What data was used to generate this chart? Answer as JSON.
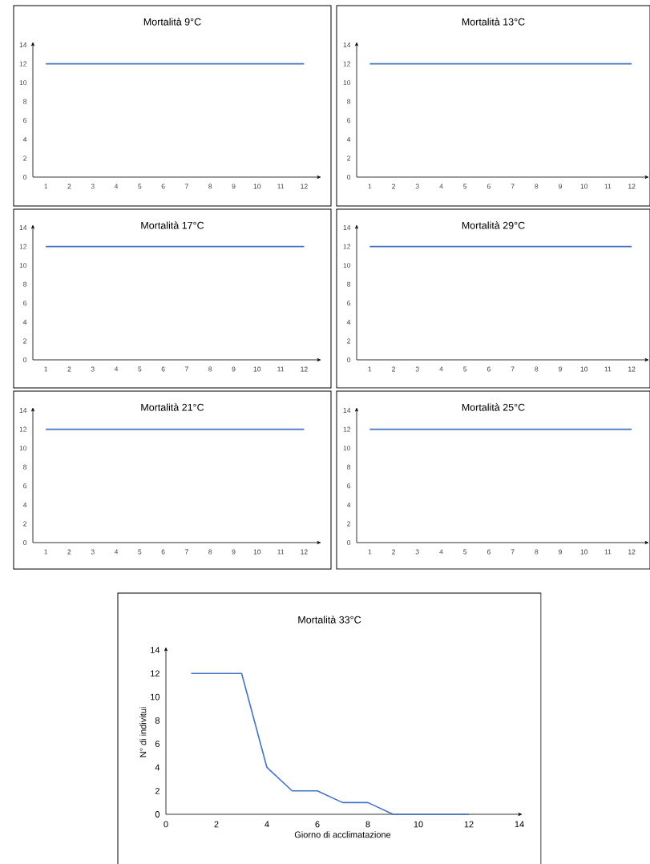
{
  "chart_data": [
    {
      "type": "line",
      "title": "Mortalità 9°C",
      "categories": [
        "1",
        "2",
        "3",
        "4",
        "5",
        "6",
        "7",
        "8",
        "9",
        "10",
        "11",
        "12"
      ],
      "series": [
        {
          "color": "#4472c4",
          "values": [
            12,
            12,
            12,
            12,
            12,
            12,
            12,
            12,
            12,
            12,
            12,
            12
          ]
        }
      ],
      "ylim": [
        0,
        14
      ],
      "yticks": [
        0,
        2,
        4,
        6,
        8,
        10,
        12,
        14
      ]
    },
    {
      "type": "line",
      "title": "Mortalità 13°C",
      "categories": [
        "1",
        "2",
        "3",
        "4",
        "5",
        "6",
        "7",
        "8",
        "9",
        "10",
        "11",
        "12"
      ],
      "series": [
        {
          "color": "#4472c4",
          "values": [
            12,
            12,
            12,
            12,
            12,
            12,
            12,
            12,
            12,
            12,
            12,
            12
          ]
        }
      ],
      "ylim": [
        0,
        14
      ],
      "yticks": [
        0,
        2,
        4,
        6,
        8,
        10,
        12,
        14
      ]
    },
    {
      "type": "line",
      "title": "Mortalità 17°C",
      "categories": [
        "1",
        "2",
        "3",
        "4",
        "5",
        "6",
        "7",
        "8",
        "9",
        "10",
        "11",
        "12"
      ],
      "series": [
        {
          "color": "#4472c4",
          "values": [
            12,
            12,
            12,
            12,
            12,
            12,
            12,
            12,
            12,
            12,
            12,
            12
          ]
        }
      ],
      "ylim": [
        0,
        14
      ],
      "yticks": [
        0,
        2,
        4,
        6,
        8,
        10,
        12,
        14
      ]
    },
    {
      "type": "line",
      "title": "Mortalità 29°C",
      "categories": [
        "1",
        "2",
        "3",
        "4",
        "5",
        "6",
        "7",
        "8",
        "9",
        "10",
        "11",
        "12"
      ],
      "series": [
        {
          "color": "#4472c4",
          "values": [
            12,
            12,
            12,
            12,
            12,
            12,
            12,
            12,
            12,
            12,
            12,
            12
          ]
        }
      ],
      "ylim": [
        0,
        14
      ],
      "yticks": [
        0,
        2,
        4,
        6,
        8,
        10,
        12,
        14
      ]
    },
    {
      "type": "line",
      "title": "Mortalità 21°C",
      "categories": [
        "1",
        "2",
        "3",
        "4",
        "5",
        "6",
        "7",
        "8",
        "9",
        "10",
        "11",
        "12"
      ],
      "series": [
        {
          "color": "#4472c4",
          "values": [
            12,
            12,
            12,
            12,
            12,
            12,
            12,
            12,
            12,
            12,
            12,
            12
          ]
        }
      ],
      "ylim": [
        0,
        14
      ],
      "yticks": [
        0,
        2,
        4,
        6,
        8,
        10,
        12,
        14
      ]
    },
    {
      "type": "line",
      "title": "Mortalità 25°C",
      "categories": [
        "1",
        "2",
        "3",
        "4",
        "5",
        "6",
        "7",
        "8",
        "9",
        "10",
        "11",
        "12"
      ],
      "series": [
        {
          "color": "#4472c4",
          "values": [
            12,
            12,
            12,
            12,
            12,
            12,
            12,
            12,
            12,
            12,
            12,
            12
          ]
        }
      ],
      "ylim": [
        0,
        14
      ],
      "yticks": [
        0,
        2,
        4,
        6,
        8,
        10,
        12,
        14
      ]
    },
    {
      "type": "line",
      "title": "Mortalità 33°C",
      "xlabel": "Giorno di acclimatazione",
      "ylabel": "N° di indivitui",
      "x": [
        1,
        2,
        3,
        4,
        5,
        6,
        7,
        8,
        9,
        10,
        11,
        12
      ],
      "series": [
        {
          "color": "#4472c4",
          "values": [
            12,
            12,
            12,
            4,
            2,
            2,
            1,
            1,
            0,
            0,
            0,
            0
          ]
        }
      ],
      "xlim": [
        0,
        14
      ],
      "xticks": [
        0,
        2,
        4,
        6,
        8,
        10,
        12,
        14
      ],
      "ylim": [
        0,
        14
      ],
      "yticks": [
        0,
        2,
        4,
        6,
        8,
        10,
        12,
        14
      ]
    }
  ]
}
